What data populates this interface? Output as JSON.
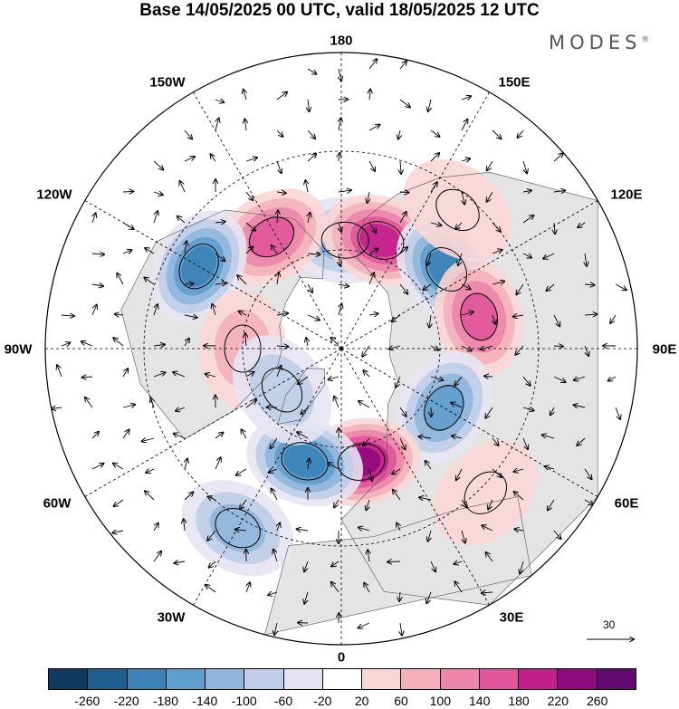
{
  "title": "Base 14/05/2025 00 UTC, valid 18/05/2025 12 UTC",
  "brand": "MODES",
  "brand_mark": "®",
  "longitude_labels": [
    "180",
    "150E",
    "120E",
    "90E",
    "60E",
    "30E",
    "0",
    "30W",
    "60W",
    "90W",
    "120W",
    "150W"
  ],
  "reference_vector_label": "30",
  "colorbar": {
    "colors": [
      "#0d3a5e",
      "#1f5f8f",
      "#3a82b8",
      "#5f9fcc",
      "#8fb6dc",
      "#bfcde8",
      "#e6e4f2",
      "#ffffff",
      "#f9d6d6",
      "#f4b1bc",
      "#ec86aa",
      "#e0559b",
      "#c21f8b",
      "#8f0b7d",
      "#5e0a6f"
    ],
    "ticks": [
      "-260",
      "-220",
      "-180",
      "-140",
      "-100",
      "-60",
      "-20",
      "20",
      "60",
      "100",
      "140",
      "180",
      "220",
      "260"
    ]
  },
  "anomaly_centers": [
    {
      "lon": 178,
      "colat": 33,
      "value": -130
    },
    {
      "lon": 160,
      "colat": 35,
      "value": 200
    },
    {
      "lon": 127,
      "colat": 40,
      "value": -200
    },
    {
      "lon": 103,
      "colat": 43,
      "value": 160
    },
    {
      "lon": 60,
      "colat": 36,
      "value": -160
    },
    {
      "lon": 10,
      "colat": 35,
      "value": 220
    },
    {
      "lon": -18,
      "colat": 36,
      "value": -200
    },
    {
      "lon": -30,
      "colat": 63,
      "value": -110
    },
    {
      "lon": -148,
      "colat": 40,
      "value": 170
    },
    {
      "lon": -120,
      "colat": 50,
      "value": -180
    },
    {
      "lon": -90,
      "colat": 30,
      "value": 70
    },
    {
      "lon": -55,
      "colat": 22,
      "value": -90
    },
    {
      "lon": 45,
      "colat": 62,
      "value": 50
    },
    {
      "lon": 140,
      "colat": 55,
      "value": 40
    }
  ]
}
